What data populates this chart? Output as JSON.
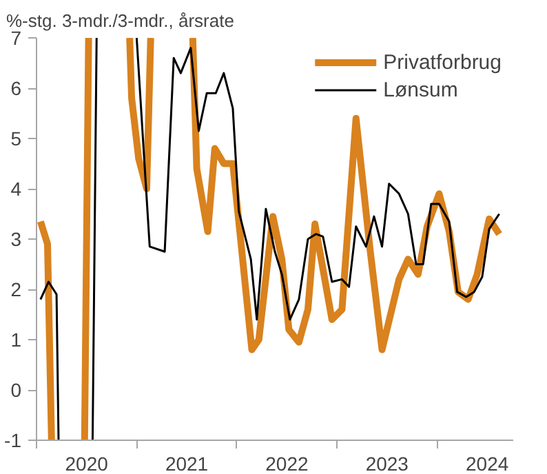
{
  "chart_data": {
    "type": "line",
    "title": "%-stg. 3-mdr./3-mdr., årsrate",
    "xlim": [
      2020,
      2024.76
    ],
    "xticks": [
      {
        "value": 2020,
        "label": null
      },
      {
        "value": 2020.5,
        "label": "2020"
      },
      {
        "value": 2021,
        "label": null
      },
      {
        "value": 2021.5,
        "label": "2021"
      },
      {
        "value": 2022,
        "label": null
      },
      {
        "value": 2022.5,
        "label": "2022"
      },
      {
        "value": 2023,
        "label": null
      },
      {
        "value": 2023.5,
        "label": "2023"
      },
      {
        "value": 2024,
        "label": null
      },
      {
        "value": 2024.5,
        "label": "2024"
      }
    ],
    "ylim": [
      -1,
      7
    ],
    "yticks": [
      -1,
      0,
      1,
      2,
      3,
      4,
      5,
      6,
      7
    ],
    "grid": false,
    "legend": "top right",
    "marker": "none",
    "line_style": "solid",
    "series": [
      {
        "name": "Privatforbrug",
        "color": "#d9821e",
        "x": [
          2020.04,
          2020.11,
          2020.15,
          2020.3,
          2020.48,
          2020.52,
          2020.7,
          2020.93,
          2020.95,
          2021.02,
          2021.1,
          2021.14,
          2021.35,
          2021.56,
          2021.6,
          2021.71,
          2021.78,
          2021.87,
          2021.96,
          2022.03,
          2022.15,
          2022.22,
          2022.36,
          2022.45,
          2022.52,
          2022.62,
          2022.71,
          2022.78,
          2022.95,
          2023.05,
          2023.19,
          2023.33,
          2023.45,
          2023.62,
          2023.71,
          2023.81,
          2023.9,
          2024.02,
          2024.12,
          2024.21,
          2024.31,
          2024.4,
          2024.52,
          2024.62
        ],
        "values": [
          3.35,
          2.9,
          -1,
          null,
          -1,
          7,
          null,
          7,
          5.8,
          4.6,
          4.0,
          7,
          null,
          7,
          4.4,
          3.15,
          4.8,
          4.5,
          4.5,
          3.15,
          0.8,
          1.0,
          3.45,
          2.6,
          1.2,
          0.95,
          1.6,
          3.3,
          1.4,
          1.6,
          5.4,
          2.8,
          0.8,
          2.2,
          2.6,
          2.3,
          3.25,
          3.9,
          3.15,
          1.95,
          1.8,
          2.3,
          3.4,
          3.1
        ]
      },
      {
        "name": "Lønsum",
        "color": "#000000",
        "x": [
          2020.04,
          2020.12,
          2020.2,
          2020.22,
          2020.4,
          2020.56,
          2020.6,
          2020.8,
          2021.0,
          2021.13,
          2021.28,
          2021.37,
          2021.44,
          2021.54,
          2021.62,
          2021.7,
          2021.79,
          2021.87,
          2021.96,
          2022.02,
          2022.14,
          2022.2,
          2022.29,
          2022.38,
          2022.45,
          2022.53,
          2022.62,
          2022.71,
          2022.79,
          2022.86,
          2022.95,
          2023.05,
          2023.12,
          2023.19,
          2023.29,
          2023.37,
          2023.45,
          2023.52,
          2023.62,
          2023.71,
          2023.79,
          2023.86,
          2023.94,
          2024.02,
          2024.12,
          2024.2,
          2024.29,
          2024.37,
          2024.45,
          2024.52,
          2024.62
        ],
        "values": [
          1.8,
          2.15,
          1.9,
          -1,
          null,
          -1,
          7,
          null,
          7,
          2.85,
          2.75,
          6.6,
          6.3,
          6.8,
          5.15,
          5.9,
          5.9,
          6.3,
          5.6,
          3.55,
          2.6,
          1.4,
          3.6,
          2.75,
          2.3,
          1.4,
          1.8,
          3.0,
          3.1,
          3.05,
          2.15,
          2.2,
          2.05,
          3.25,
          2.85,
          3.45,
          2.85,
          4.1,
          3.9,
          3.5,
          2.5,
          2.5,
          3.7,
          3.7,
          3.35,
          1.95,
          1.85,
          1.95,
          2.25,
          3.2,
          3.5
        ]
      }
    ]
  }
}
